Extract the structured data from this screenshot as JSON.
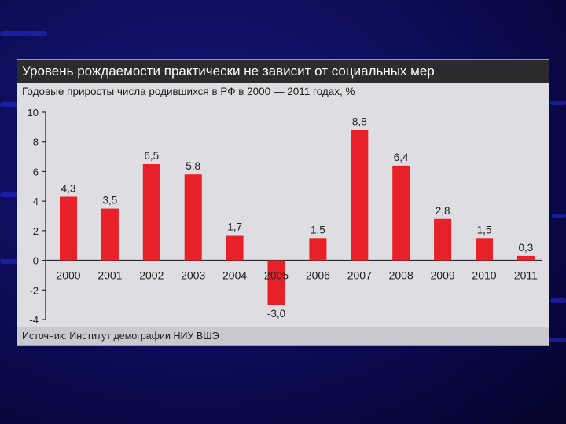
{
  "colors": {
    "background": "#0b0b55",
    "panel": "#dedee2",
    "title_bar": "#2c2c2e",
    "bar": "#e8202a",
    "axis": "#2a2a2a"
  },
  "chart_data": {
    "type": "bar",
    "title": "Уровень рождаемости практически не зависит от социальных мер",
    "subtitle": "Годовые приросты числа родившихся в РФ в 2000 — 2011 годах,  %",
    "categories": [
      "2000",
      "2001",
      "2002",
      "2003",
      "2004",
      "2005",
      "2006",
      "2007",
      "2008",
      "2009",
      "2010",
      "2011"
    ],
    "values": [
      4.3,
      3.5,
      6.5,
      5.8,
      1.7,
      -3.0,
      1.5,
      8.8,
      6.4,
      2.8,
      1.5,
      0.3
    ],
    "value_labels": [
      "4,3",
      "3,5",
      "6,5",
      "5,8",
      "1,7",
      "-3,0",
      "1,5",
      "8,8",
      "6,4",
      "2,8",
      "1,5",
      "0,3"
    ],
    "y_ticks": [
      10,
      8,
      6,
      4,
      2,
      0,
      -2,
      -4
    ],
    "ylim": [
      -4,
      10
    ],
    "grid": false,
    "source": "Источник: Институт демографии НИУ ВШЭ"
  }
}
